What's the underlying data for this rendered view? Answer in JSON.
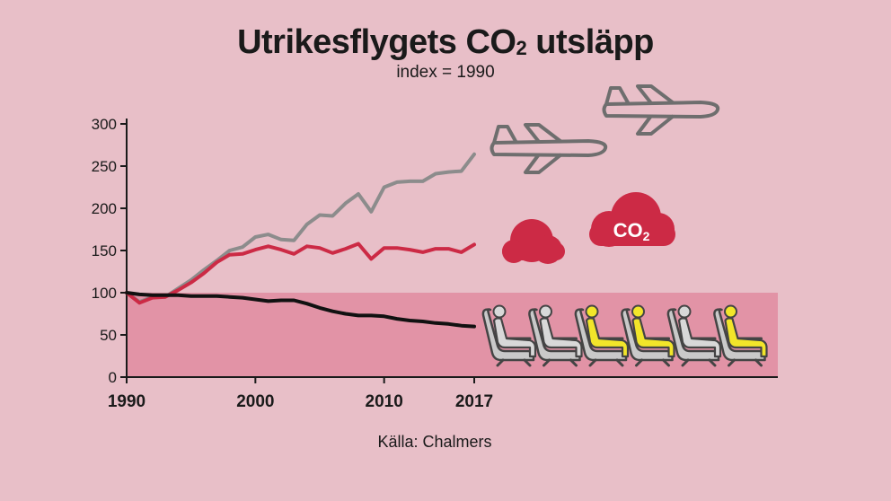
{
  "title_main": "Utrikesflygets CO",
  "title_sub": "2",
  "title_tail": " utsläpp",
  "subtitle": "index = 1990",
  "source": "Källa: Chalmers",
  "cloud_label_main": "CO",
  "cloud_label_sub": "2",
  "colors": {
    "background": "#e8bfc8",
    "band": "#e293a6",
    "grey_series": "#8c8c8c",
    "red_series": "#cc2a45",
    "black_series": "#111111",
    "seat_yellow": "#f2e52a",
    "seat_grey": "#c9c9c9"
  },
  "icons": [
    "airplane-icon",
    "airplane-icon",
    "cloud-icon",
    "co2-cloud-icon",
    "seat-icon"
  ],
  "seats": {
    "total": 6,
    "highlighted_positions": [
      3,
      4,
      6
    ]
  },
  "chart_data": {
    "type": "line",
    "x_ticks": [
      1990,
      2000,
      2010,
      2017
    ],
    "y_ticks": [
      0,
      50,
      100,
      150,
      200,
      250,
      300
    ],
    "xlim": [
      1990,
      2017
    ],
    "ylim": [
      0,
      300
    ],
    "band": {
      "from": 0,
      "to": 100
    },
    "x": [
      1990,
      1991,
      1992,
      1993,
      1994,
      1995,
      1996,
      1997,
      1998,
      1999,
      2000,
      2001,
      2002,
      2003,
      2004,
      2005,
      2006,
      2007,
      2008,
      2009,
      2010,
      2011,
      2012,
      2013,
      2014,
      2015,
      2016,
      2017
    ],
    "series": [
      {
        "key": "grey",
        "values": [
          100,
          89,
          95,
          95,
          105,
          115,
          127,
          138,
          150,
          154,
          166,
          169,
          163,
          162,
          181,
          192,
          191,
          206,
          217,
          196,
          225,
          231,
          232,
          232,
          241,
          243,
          244,
          264
        ]
      },
      {
        "key": "red",
        "values": [
          100,
          88,
          94,
          95,
          103,
          112,
          123,
          136,
          145,
          146,
          151,
          155,
          151,
          146,
          155,
          153,
          147,
          152,
          158,
          140,
          153,
          153,
          151,
          148,
          152,
          152,
          148,
          157
        ]
      },
      {
        "key": "black",
        "values": [
          100,
          98,
          97,
          97,
          97,
          96,
          96,
          96,
          95,
          94,
          92,
          90,
          91,
          91,
          87,
          82,
          78,
          75,
          73,
          73,
          72,
          69,
          67,
          66,
          64,
          63,
          61,
          60
        ]
      }
    ]
  }
}
